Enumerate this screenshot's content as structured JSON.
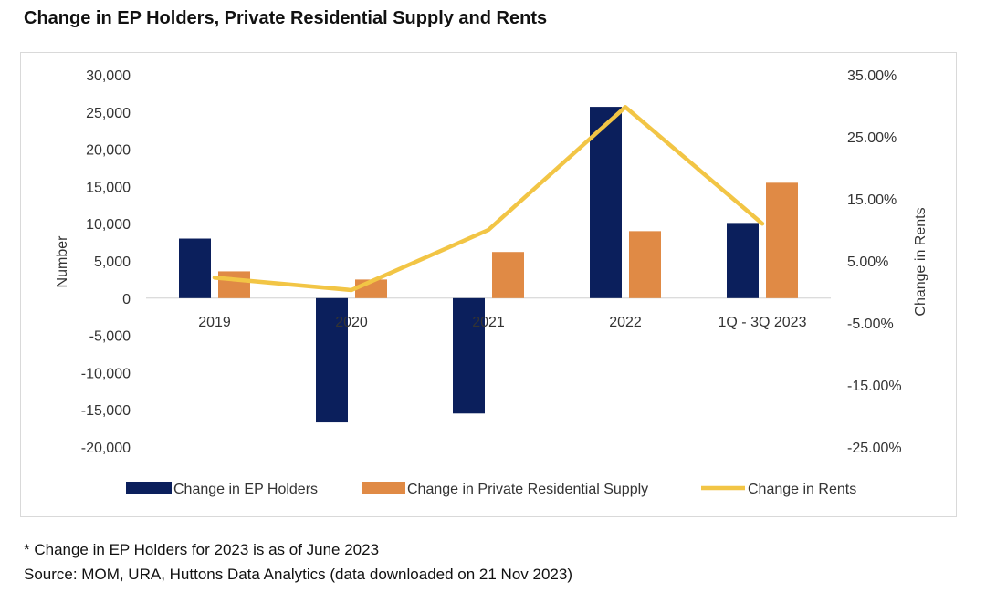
{
  "title": "Change in EP Holders, Private Residential Supply and Rents",
  "footnotes": {
    "note": "* Change in EP Holders for 2023 is as of June 2023",
    "source": "Source: MOM, URA, Huttons Data Analytics (data downloaded on 21 Nov 2023)"
  },
  "colors": {
    "ep_holders": "#0b1f5c",
    "supply": "#e08a45",
    "rents": "#f2c545",
    "axis_text": "#333333",
    "baseline": "#d0d0d0"
  },
  "chart_data": {
    "type": "bar",
    "title": "Change in EP Holders, Private Residential Supply and Rents",
    "categories": [
      "2019",
      "2020",
      "2021",
      "2022",
      "1Q - 3Q 2023"
    ],
    "ylabel": "Number",
    "y2label": "Change in Rents",
    "ylim": [
      -20000,
      30000
    ],
    "yticks": [
      "30,000",
      "25,000",
      "20,000",
      "15,000",
      "10,000",
      "5,000",
      "0",
      "-5,000",
      "-10,000",
      "-15,000",
      "-20,000"
    ],
    "y2lim": [
      -25,
      35
    ],
    "y2ticks": [
      "35.00%",
      "25.00%",
      "15.00%",
      "5.00%",
      "-5.00%",
      "-15.00%",
      "-25.00%"
    ],
    "series": [
      {
        "name": "Change in EP Holders",
        "type": "bar",
        "axis": "left",
        "values": [
          8000,
          -16700,
          -15500,
          25700,
          10100
        ]
      },
      {
        "name": "Change in Private Residential Supply",
        "type": "bar",
        "axis": "left",
        "values": [
          3600,
          2500,
          6200,
          9000,
          15500
        ]
      },
      {
        "name": "Change in Rents",
        "type": "line",
        "axis": "right",
        "values": [
          2.3,
          0.3,
          10.0,
          29.8,
          11.0
        ]
      }
    ],
    "legend_position": "bottom",
    "grid": false
  }
}
